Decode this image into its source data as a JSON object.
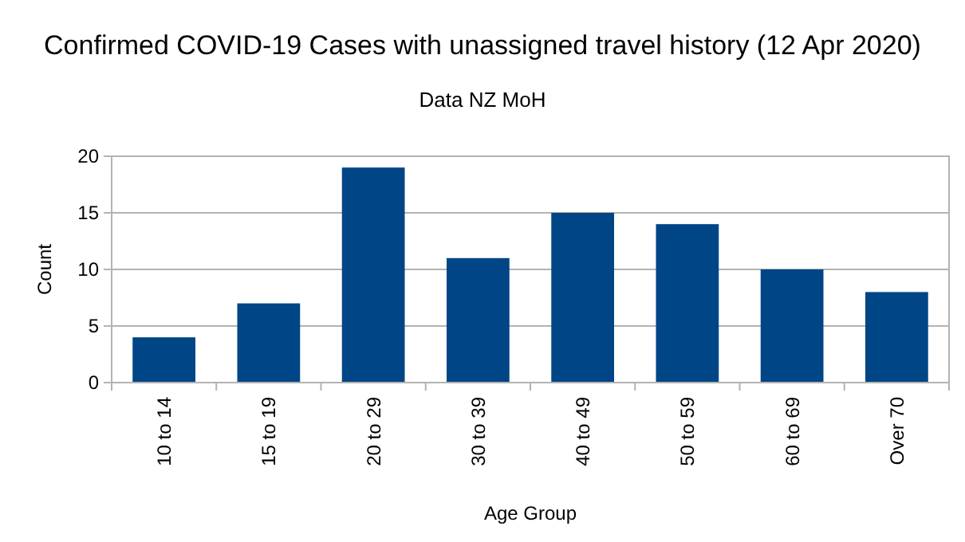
{
  "chart_data": {
    "type": "bar",
    "title": "Confirmed COVID-19 Cases with unassigned travel history (12 Apr 2020)",
    "subtitle": "Data NZ MoH",
    "xlabel": "Age Group",
    "ylabel": "Count",
    "categories": [
      "10 to 14",
      "15 to 19",
      "20 to 29",
      "30 to 39",
      "40 to 49",
      "50 to 59",
      "60 to 69",
      "Over 70"
    ],
    "values": [
      4,
      7,
      19,
      11,
      15,
      14,
      10,
      8
    ],
    "color": "#004586",
    "ylim": [
      0,
      20
    ],
    "yticks": [
      0,
      5,
      10,
      15,
      20
    ],
    "grid": "y"
  }
}
